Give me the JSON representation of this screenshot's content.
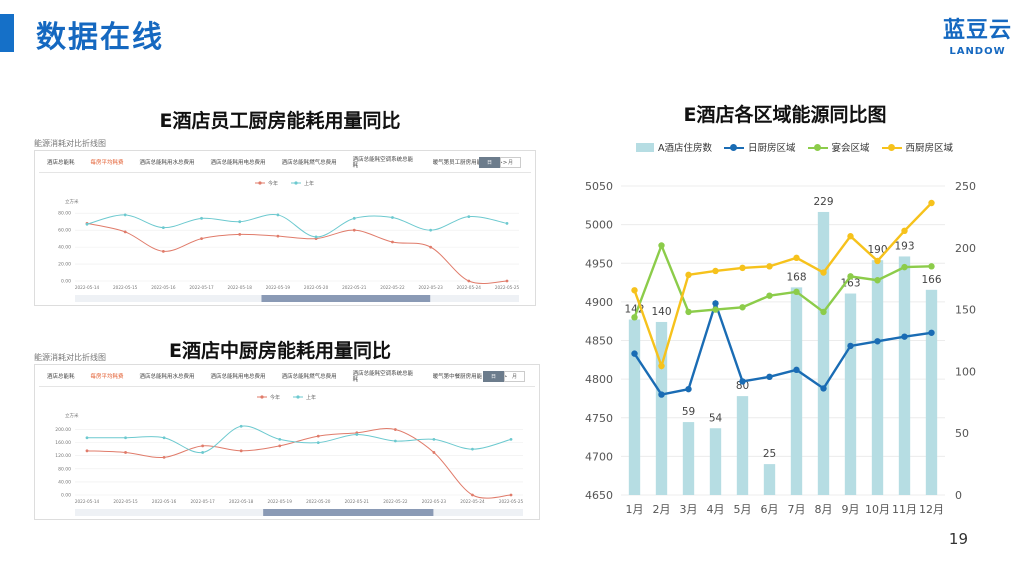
{
  "header": {
    "title": "数据在线",
    "logo_cn": "蓝豆云",
    "logo_en": "LANDOW",
    "page_number": "19"
  },
  "colors": {
    "accent": "#1570c8",
    "this_year": "#e07b6a",
    "last_year": "#6cc9cf",
    "bar": "#b6dde3",
    "daily_kitchen": "#1a6cb4",
    "banquet": "#8ccc4a",
    "western_kitchen": "#f6c21c"
  },
  "staff_kitchen": {
    "title": "E酒店员工厨房能耗用量同比",
    "caption": "能源消耗对比折线图",
    "tabs": [
      "酒店总能耗",
      "每房平均耗费",
      "酒店总能耗用水总费用",
      "酒店总能耗用电总费用",
      "酒店总能耗燃气总费用",
      "酒店总能耗空调系统总能耗",
      "暖气第员工厨房用能"
    ],
    "more": ">>",
    "seg": [
      "日",
      "月"
    ],
    "legend": [
      "今年",
      "上年"
    ],
    "unit": "立方米",
    "chart_data": {
      "type": "line",
      "categories": [
        "2022-05-14",
        "2022-05-15",
        "2022-05-16",
        "2022-05-17",
        "2022-05-18",
        "2022-05-19",
        "2022-05-20",
        "2022-05-21",
        "2022-05-22",
        "2022-05-23",
        "2022-05-24",
        "2022-05-25"
      ],
      "yticks": [
        "0.00",
        "20.00",
        "40.00",
        "60.00",
        "80.00"
      ],
      "ylim": [
        0,
        85
      ],
      "series": [
        {
          "name": "今年",
          "values": [
            68,
            58,
            35,
            50,
            55,
            53,
            50,
            60,
            46,
            40,
            0,
            0
          ]
        },
        {
          "name": "上年",
          "values": [
            67,
            78,
            63,
            74,
            70,
            78,
            52,
            74,
            75,
            60,
            76,
            68
          ]
        }
      ]
    }
  },
  "middle_kitchen": {
    "title": "E酒店中厨房能耗用量同比",
    "caption": "能源消耗对比折线图",
    "tabs": [
      "酒店总能耗",
      "每房平均耗费",
      "酒店总能耗用水总费用",
      "酒店总能耗用电总费用",
      "酒店总能耗燃气总费用",
      "酒店总能耗空调系统总能耗",
      "暖气第中餐厨房用能"
    ],
    "more": ">>",
    "seg": [
      "日",
      "月"
    ],
    "legend": [
      "今年",
      "上年"
    ],
    "unit": "立方米",
    "chart_data": {
      "type": "line",
      "categories": [
        "2022-05-14",
        "2022-05-15",
        "2022-05-16",
        "2022-05-17",
        "2022-05-18",
        "2022-05-19",
        "2022-05-20",
        "2022-05-21",
        "2022-05-22",
        "2022-05-23",
        "2022-05-24",
        "2022-05-25"
      ],
      "yticks": [
        "0.00",
        "40.00",
        "80.00",
        "120.00",
        "160.00",
        "200.00"
      ],
      "ylim": [
        0,
        220
      ],
      "series": [
        {
          "name": "今年",
          "values": [
            135,
            130,
            115,
            150,
            135,
            150,
            180,
            190,
            200,
            130,
            0,
            0
          ]
        },
        {
          "name": "上年",
          "values": [
            175,
            175,
            175,
            130,
            210,
            170,
            160,
            185,
            165,
            170,
            140,
            170
          ]
        }
      ]
    }
  },
  "area_chart": {
    "title": "E酒店各区域能源同比图",
    "chart_data": {
      "type": "bar",
      "categories": [
        "1月",
        "2月",
        "3月",
        "4月",
        "5月",
        "6月",
        "7月",
        "8月",
        "9月",
        "10月",
        "11月",
        "12月"
      ],
      "ylim": [
        4650,
        5050
      ],
      "yticks": [
        "4650",
        "4700",
        "4750",
        "4800",
        "4850",
        "4900",
        "4950",
        "5000",
        "5050"
      ],
      "y2lim": [
        0,
        250
      ],
      "y2ticks": [
        "0",
        "50",
        "100",
        "150",
        "200",
        "250"
      ],
      "series": [
        {
          "name": "A酒店住房数",
          "axis": "right",
          "values": [
            142,
            140,
            59,
            54,
            80,
            25,
            168,
            229,
            163,
            190,
            193,
            166
          ],
          "labels": [
            "142",
            "140",
            "59",
            "54",
            "80",
            "25",
            "168",
            "229",
            "163",
            "190",
            "193",
            "166"
          ]
        },
        {
          "name": "日厨房区域",
          "axis": "left",
          "values": [
            4833,
            4780,
            4787,
            4898,
            4797,
            4803,
            4812,
            4788,
            4843,
            4849,
            4855,
            4860
          ]
        },
        {
          "name": "宴会区域",
          "axis": "left",
          "values": [
            4880,
            4973,
            4887,
            4890,
            4893,
            4908,
            4913,
            4887,
            4933,
            4928,
            4945,
            4946
          ]
        },
        {
          "name": "西厨房区域",
          "axis": "left",
          "values": [
            4915,
            4817,
            4935,
            4940,
            4944,
            4946,
            4957,
            4938,
            4985,
            4953,
            4992,
            5028
          ]
        }
      ]
    }
  }
}
